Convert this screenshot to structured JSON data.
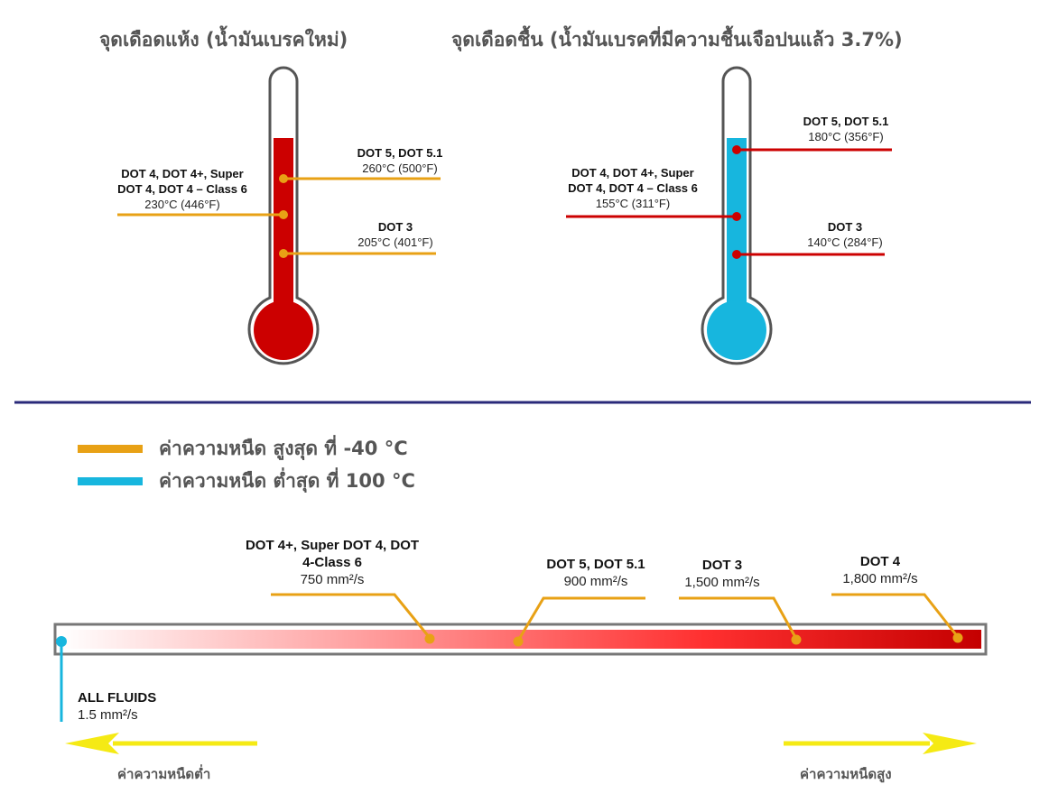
{
  "dry": {
    "title": "จุดเดือดแห้ง (น้ำมันเบรคใหม่)",
    "fluid_color": "#cc0000",
    "marker_color": "#e8a115",
    "entries": [
      {
        "name": "DOT 5, DOT 5.1",
        "value": "260°C (500°F)",
        "temp_c": 260
      },
      {
        "name_lines": [
          "DOT 4, DOT 4+, Super",
          "DOT 4, DOT 4 – Class 6"
        ],
        "value": "230°C (446°F)",
        "temp_c": 230
      },
      {
        "name": "DOT 3",
        "value": "205°C (401°F)",
        "temp_c": 205
      }
    ]
  },
  "wet": {
    "title": "จุดเดือดชื้น (น้ำมันเบรคที่มีความชื้นเจือปนแล้ว 3.7%)",
    "fluid_color": "#17b6de",
    "marker_color": "#cc0000",
    "entries": [
      {
        "name": "DOT 5, DOT 5.1",
        "value": "180°C (356°F)",
        "temp_c": 180
      },
      {
        "name_lines": [
          "DOT 4, DOT 4+, Super",
          "DOT 4, DOT 4 – Class 6"
        ],
        "value": "155°C (311°F)",
        "temp_c": 155
      },
      {
        "name": "DOT 3",
        "value": "140°C (284°F)",
        "temp_c": 140
      }
    ]
  },
  "divider_color": "#2a2a7a",
  "legend": [
    {
      "label": "ค่าความหนืด สูงสุด ที่ -40 °C",
      "color": "#e8a115"
    },
    {
      "label": "ค่าความหนืด ต่ำสุด ที่ 100 °C",
      "color": "#17b6de"
    }
  ],
  "viscosity": {
    "items": [
      {
        "name_lines": [
          "DOT 4+, Super DOT 4, DOT",
          "4-Class 6"
        ],
        "value": "750 mm²/s",
        "mm2s": 750
      },
      {
        "name": "DOT 5, DOT 5.1",
        "value": "900 mm²/s",
        "mm2s": 900
      },
      {
        "name": "DOT 3",
        "value": "1,500 mm²/s",
        "mm2s": 1500
      },
      {
        "name": "DOT 4",
        "value": "1,800 mm²/s",
        "mm2s": 1800
      }
    ],
    "low": {
      "name": "ALL FLUIDS",
      "value": "1.5 mm²/s",
      "mm2s": 1.5
    },
    "arrow_left_label": "ค่าความหนืดต่ำ",
    "arrow_right_label": "ค่าความหนืดสูง",
    "arrow_color": "#f5ea14"
  }
}
